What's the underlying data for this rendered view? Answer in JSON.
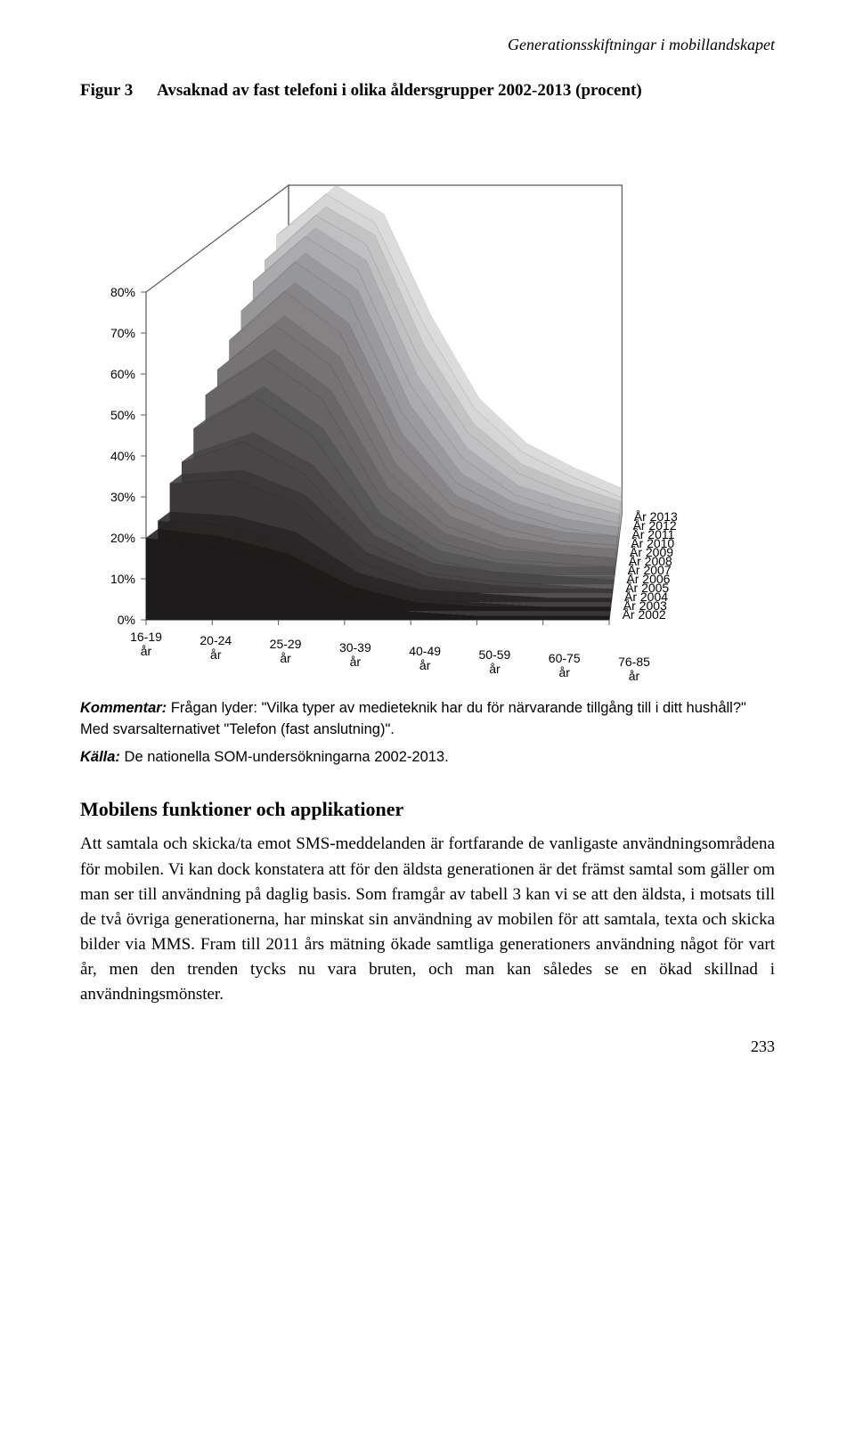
{
  "running_head": "Generationsskiftningar i mobillandskapet",
  "figure": {
    "label": "Figur 3",
    "title": "Avsaknad av fast telefoni i olika åldersgrupper 2002-2013 (procent)"
  },
  "chart": {
    "type": "3d-area-ridge",
    "background_color": "#ffffff",
    "box_line_color": "#5a5a5a",
    "box_line_width": 1.2,
    "y_axis": {
      "ticks": [
        "0%",
        "10%",
        "20%",
        "30%",
        "40%",
        "50%",
        "60%",
        "70%",
        "80%"
      ],
      "fontsize": 14,
      "font_family": "Arial"
    },
    "x_axis": {
      "categories": [
        "16-19 år",
        "20-24 år",
        "25-29 år",
        "30-39 år",
        "40-49 år",
        "50-59 år",
        "60-75 år",
        "76-85 år"
      ],
      "fontsize": 14,
      "font_family": "Arial"
    },
    "z_axis": {
      "labels": [
        "År 2013",
        "År 2012",
        "År 2011",
        "År 2010",
        "År 2009",
        "År 2008",
        "År 2007",
        "År 2006",
        "År 2005",
        "År 2004",
        "År 2003",
        "År 2002"
      ],
      "fontsize": 14,
      "font_family": "Arial"
    },
    "series": [
      {
        "year": "År 2002",
        "color": "#1c1a1a",
        "values": [
          20,
          18,
          14,
          6,
          2,
          1,
          1,
          1
        ]
      },
      {
        "year": "År 2003",
        "color": "#292626",
        "values": [
          22,
          21,
          17,
          7,
          3,
          2,
          1,
          1
        ]
      },
      {
        "year": "År 2004",
        "color": "#3a3738",
        "values": [
          29,
          30,
          24,
          10,
          4,
          2,
          1,
          1
        ]
      },
      {
        "year": "År 2005",
        "color": "#484646",
        "values": [
          32,
          37,
          29,
          12,
          5,
          3,
          2,
          1
        ]
      },
      {
        "year": "År 2006",
        "color": "#575556",
        "values": [
          38,
          46,
          36,
          15,
          6,
          3,
          2,
          2
        ]
      },
      {
        "year": "År 2007",
        "color": "#666465",
        "values": [
          44,
          53,
          43,
          19,
          8,
          4,
          3,
          2
        ]
      },
      {
        "year": "År 2008",
        "color": "#757374",
        "values": [
          48,
          59,
          49,
          23,
          10,
          5,
          3,
          2
        ]
      },
      {
        "year": "År 2009",
        "color": "#858384",
        "values": [
          53,
          65,
          55,
          28,
          13,
          7,
          4,
          3
        ]
      },
      {
        "year": "År 2010",
        "color": "#97979a",
        "values": [
          58,
          70,
          61,
          33,
          16,
          9,
          5,
          3
        ]
      },
      {
        "year": "År 2011",
        "color": "#ababad",
        "values": [
          63,
          74,
          66,
          38,
          20,
          11,
          7,
          4
        ]
      },
      {
        "year": "År 2012",
        "color": "#c0c0c2",
        "values": [
          66,
          77,
          70,
          43,
          24,
          14,
          9,
          5
        ]
      },
      {
        "year": "År 2013",
        "color": "#d6d6d7",
        "values": [
          70,
          80,
          73,
          48,
          28,
          17,
          11,
          6
        ]
      }
    ]
  },
  "kommentar": {
    "label": "Kommentar:",
    "text": "Frågan lyder: \"Vilka typer av medieteknik har du för närvarande tillgång till i ditt hushåll?\" Med svarsalternativet \"Telefon (fast anslutning)\"."
  },
  "kalla": {
    "label": "Källa:",
    "text": "De nationella SOM-undersökningarna 2002-2013."
  },
  "section": {
    "heading": "Mobilens funktioner och applikationer",
    "body": "Att samtala och skicka/ta emot SMS-meddelanden är fortfarande de vanligaste användningsområdena för mobilen. Vi kan dock konstatera att för den äldsta generationen är det främst samtal som gäller om man ser till användning på daglig basis. Som framgår av tabell 3 kan vi se att den äldsta, i motsats till de två övriga generationerna, har minskat sin användning av mobilen för att samtala, texta och skicka bilder via MMS. Fram till 2011 års mätning ökade samtliga generationers användning något för vart år, men den trenden tycks nu vara bruten, och man kan således se en ökad skillnad i användningsmönster."
  },
  "page_number": "233"
}
